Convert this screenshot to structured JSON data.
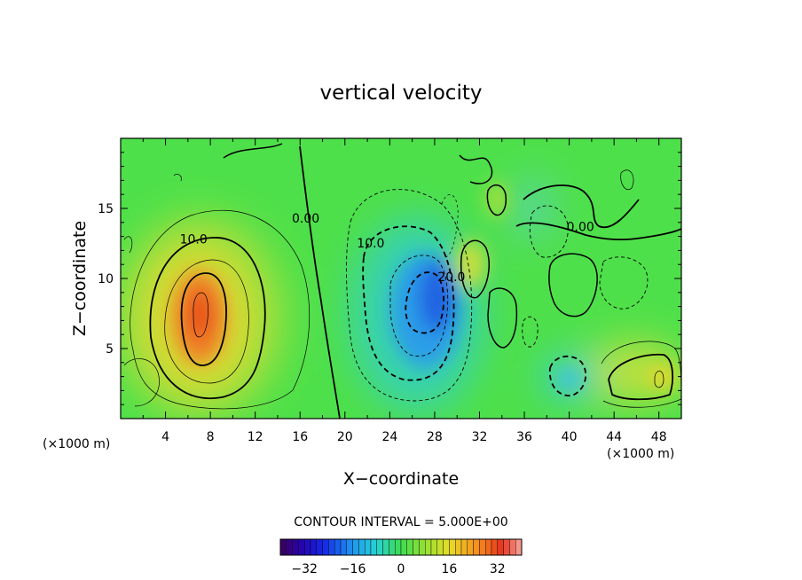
{
  "chart_data": {
    "type": "heatmap",
    "title": "vertical velocity",
    "xlabel": "X−coordinate",
    "ylabel": "Z−coordinate",
    "x_unit": "(×1000 m)",
    "x_unit_right": "(×1000 m)",
    "xlim": [
      0,
      50
    ],
    "ylim": [
      0,
      20
    ],
    "x_ticks": [
      4,
      8,
      12,
      16,
      20,
      24,
      28,
      32,
      36,
      40,
      44,
      48
    ],
    "y_ticks": [
      5,
      10,
      15
    ],
    "contour_interval_text": "CONTOUR INTERVAL = 5.000E+00",
    "contour_labels": [
      {
        "text": "10.0",
        "x": 6.5,
        "y": 12.5
      },
      {
        "text": "0.00",
        "x": 16.5,
        "y": 14.0
      },
      {
        "text": "10.0",
        "x": 22.3,
        "y": 12.2
      },
      {
        "text": "20.0",
        "x": 29.5,
        "y": 9.8
      },
      {
        "text": "0.00",
        "x": 41.0,
        "y": 13.4
      }
    ],
    "features": [
      {
        "name": "updraft-core",
        "x": 7.0,
        "y": 8.0,
        "value": 28
      },
      {
        "name": "downdraft-core",
        "x": 27.0,
        "y": 8.5,
        "value": -24
      },
      {
        "name": "updraft-lower-right",
        "x": 47.0,
        "y": 3.0,
        "value": 12
      },
      {
        "name": "downdraft-lower-right",
        "x": 40.0,
        "y": 3.0,
        "value": -10
      }
    ],
    "colorbar": {
      "min": -40,
      "max": 40,
      "ticks": [
        -32,
        -16,
        0,
        16,
        32
      ],
      "tick_labels": [
        "−32",
        "−16",
        "0",
        "16",
        "32"
      ]
    }
  }
}
